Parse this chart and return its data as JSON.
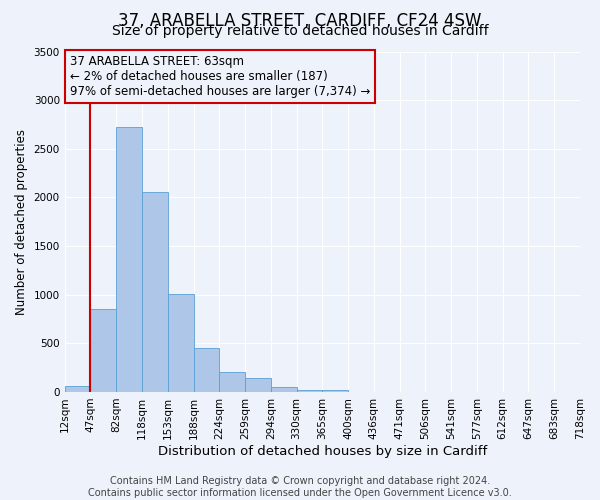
{
  "title": "37, ARABELLA STREET, CARDIFF, CF24 4SW",
  "subtitle": "Size of property relative to detached houses in Cardiff",
  "xlabel": "Distribution of detached houses by size in Cardiff",
  "ylabel": "Number of detached properties",
  "bar_values": [
    60,
    850,
    2720,
    2060,
    1010,
    455,
    205,
    145,
    55,
    25,
    15,
    0,
    0,
    0,
    0,
    0,
    0,
    0,
    0,
    0
  ],
  "bin_labels": [
    "12sqm",
    "47sqm",
    "82sqm",
    "118sqm",
    "153sqm",
    "188sqm",
    "224sqm",
    "259sqm",
    "294sqm",
    "330sqm",
    "365sqm",
    "400sqm",
    "436sqm",
    "471sqm",
    "506sqm",
    "541sqm",
    "577sqm",
    "612sqm",
    "647sqm",
    "683sqm",
    "718sqm"
  ],
  "bar_color": "#aec6e8",
  "bar_edge_color": "#5a9fd4",
  "vline_x": 1,
  "vline_color": "#cc0000",
  "annotation_line1": "37 ARABELLA STREET: 63sqm",
  "annotation_line2": "← 2% of detached houses are smaller (187)",
  "annotation_line3": "97% of semi-detached houses are larger (7,374) →",
  "annotation_box_color": "#cc0000",
  "ylim": [
    0,
    3500
  ],
  "yticks": [
    0,
    500,
    1000,
    1500,
    2000,
    2500,
    3000,
    3500
  ],
  "footer_text": "Contains HM Land Registry data © Crown copyright and database right 2024.\nContains public sector information licensed under the Open Government Licence v3.0.",
  "background_color": "#eef2fa",
  "grid_color": "#ffffff",
  "title_fontsize": 12,
  "subtitle_fontsize": 10,
  "xlabel_fontsize": 9.5,
  "ylabel_fontsize": 8.5,
  "tick_fontsize": 7.5,
  "annotation_fontsize": 8.5,
  "footer_fontsize": 7
}
